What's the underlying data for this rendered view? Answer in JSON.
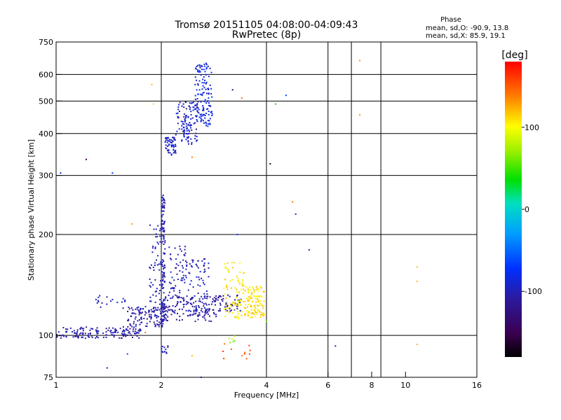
{
  "chart_data": {
    "type": "scatter",
    "title": "Tromsø 20151105 04:08:00-04:09:43",
    "subtitle": "RwPretec (8p)",
    "xlabel": "Frequency [MHz]",
    "ylabel": "Stationary phase Virtual Height [km]",
    "x_scale": "log",
    "y_scale": "log",
    "xlim": [
      1,
      16
    ],
    "ylim": [
      75,
      750
    ],
    "x_ticks": [
      1,
      2,
      4,
      6,
      8,
      10,
      16
    ],
    "x_tick_labels": [
      "1",
      "2",
      "4",
      "6",
      "8",
      "10",
      "16"
    ],
    "y_ticks": [
      75,
      100,
      200,
      300,
      400,
      500,
      600,
      750
    ],
    "y_tick_labels": [
      "75",
      "100",
      "200",
      "300",
      "400",
      "500",
      "600",
      "750"
    ],
    "grid_x": [
      2,
      4,
      6,
      7,
      8.5
    ],
    "grid_y": [
      100,
      200,
      300,
      400,
      500,
      600
    ],
    "stats": {
      "heading": "Phase",
      "o_line": "mean, sd,O: -90.9, 13.8",
      "x_line": "mean, sd,X: 85.9, 19.1"
    },
    "colorbar": {
      "label": "[deg]",
      "range": [
        -180,
        180
      ],
      "ticks": [
        100,
        0,
        -100
      ],
      "tick_labels": [
        "100",
        "0",
        "-100"
      ]
    },
    "series": [
      {
        "clusters": [
          {
            "f": [
              1.0,
              1.75
            ],
            "h": [
              98,
              106
            ],
            "phase": -105,
            "n": 150
          },
          {
            "f": [
              1.6,
              2.05
            ],
            "h": [
              106,
              122
            ],
            "phase": -108,
            "n": 110
          },
          {
            "f": [
              2.0,
              2.9
            ],
            "h": [
              110,
              132
            ],
            "phase": -110,
            "n": 140
          },
          {
            "f": [
              2.85,
              3.4
            ],
            "h": [
              118,
              132
            ],
            "phase": -112,
            "n": 50
          },
          {
            "f": [
              2.0,
              2.05
            ],
            "h": [
              110,
              265
            ],
            "phase": -102,
            "n": 120
          },
          {
            "f": [
              1.85,
              2.0
            ],
            "h": [
              118,
              215
            ],
            "phase": -100,
            "n": 60
          },
          {
            "f": [
              2.1,
              2.4
            ],
            "h": [
              125,
              185
            ],
            "phase": -102,
            "n": 70
          },
          {
            "f": [
              2.4,
              2.75
            ],
            "h": [
              115,
              170
            ],
            "phase": -100,
            "n": 70
          },
          {
            "f": [
              2.05,
              2.2
            ],
            "h": [
              345,
              390
            ],
            "phase": -95,
            "n": 60
          },
          {
            "f": [
              2.2,
              2.55
            ],
            "h": [
              370,
              500
            ],
            "phase": -95,
            "n": 90
          },
          {
            "f": [
              2.5,
              2.8
            ],
            "h": [
              420,
              650
            ],
            "phase": -85,
            "n": 130
          },
          {
            "f": [
              2.3,
              2.45
            ],
            "h": [
              380,
              460
            ],
            "phase": -90,
            "n": 30
          },
          {
            "f": [
              2.0,
              2.1
            ],
            "h": [
              88,
              93
            ],
            "phase": -100,
            "n": 12
          },
          {
            "f": [
              1.3,
              1.6
            ],
            "h": [
              120,
              132
            ],
            "phase": -100,
            "n": 18
          }
        ],
        "points": [
          [
            1.03,
            305,
            -80
          ],
          [
            1.22,
            335,
            -150
          ],
          [
            1.45,
            305,
            -70
          ],
          [
            1.65,
            215,
            130
          ],
          [
            1.75,
            120,
            -70
          ],
          [
            1.8,
            102,
            140
          ],
          [
            1.88,
            560,
            120
          ],
          [
            1.9,
            490,
            110
          ],
          [
            2.45,
            340,
            140
          ],
          [
            2.45,
            87,
            120
          ],
          [
            2.6,
            75,
            -60
          ],
          [
            3.2,
            540,
            -150
          ],
          [
            3.4,
            510,
            150
          ],
          [
            3.3,
            200,
            -70
          ],
          [
            4.1,
            325,
            -160
          ],
          [
            4.25,
            490,
            40
          ],
          [
            4.55,
            520,
            -70
          ],
          [
            4.75,
            250,
            140
          ],
          [
            4.85,
            230,
            -100
          ],
          [
            5.3,
            180,
            -100
          ],
          [
            6.3,
            93,
            -100
          ],
          [
            7.4,
            660,
            130
          ],
          [
            7.4,
            455,
            130
          ],
          [
            10.8,
            160,
            120
          ],
          [
            10.8,
            145,
            120
          ],
          [
            10.8,
            94,
            120
          ],
          [
            1.4,
            80,
            -90
          ],
          [
            1.6,
            88,
            -60
          ],
          [
            3.9,
            115,
            140
          ],
          [
            4.0,
            110,
            60
          ]
        ]
      },
      {
        "clusters": [
          {
            "f": [
              3.0,
              3.45
            ],
            "h": [
              112,
              165
            ],
            "phase": 105,
            "n": 80
          },
          {
            "f": [
              3.45,
              3.95
            ],
            "h": [
              113,
              140
            ],
            "phase": 110,
            "n": 110
          },
          {
            "f": [
              3.0,
              3.6
            ],
            "h": [
              85,
              95
            ],
            "phase": 150,
            "n": 12
          },
          {
            "f": [
              3.1,
              3.3
            ],
            "h": [
              95,
              100
            ],
            "phase": 70,
            "n": 6
          }
        ],
        "points": []
      }
    ]
  }
}
